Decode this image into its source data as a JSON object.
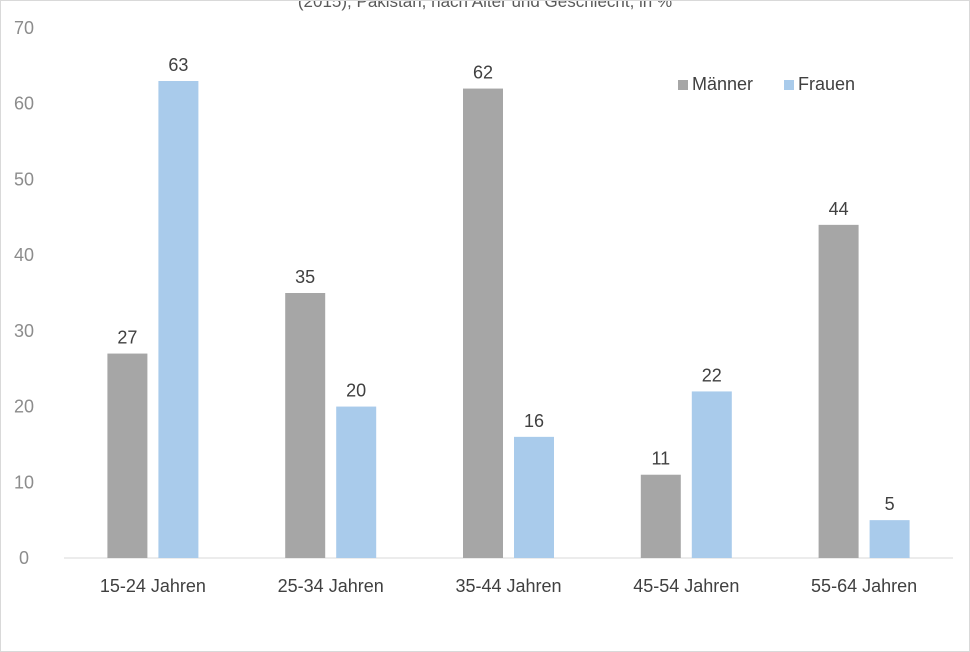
{
  "header": {
    "clipped_title": "(2015), Pakistan, nach Alter und Geschlecht, in %"
  },
  "chart_data": {
    "type": "bar",
    "title": "",
    "xlabel": "",
    "ylabel": "",
    "categories": [
      "15-24 Jahren",
      "25-34 Jahren",
      "35-44 Jahren",
      "45-54 Jahren",
      "55-64 Jahren"
    ],
    "series": [
      {
        "name": "Männer",
        "values": [
          27,
          35,
          62,
          11,
          44
        ],
        "color": "#a6a6a6"
      },
      {
        "name": "Frauen",
        "values": [
          63,
          20,
          16,
          22,
          5
        ],
        "color": "#a9cbeb"
      }
    ],
    "ylim": [
      0,
      70
    ],
    "yticks": [
      0,
      10,
      20,
      30,
      40,
      50,
      60,
      70
    ],
    "grid": false,
    "legend_position": "top-right"
  }
}
